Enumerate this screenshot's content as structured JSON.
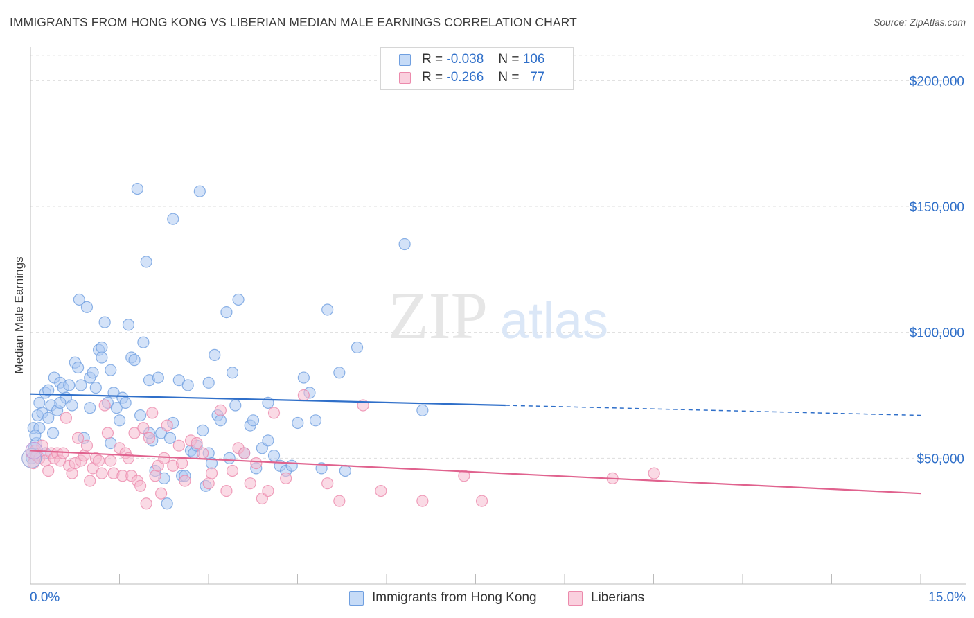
{
  "title": "IMMIGRANTS FROM HONG KONG VS LIBERIAN MEDIAN MALE EARNINGS CORRELATION CHART",
  "source": "Source: ZipAtlas.com",
  "watermark": {
    "zip": "ZIP",
    "atlas": "atlas"
  },
  "stats_legend": {
    "rows": [
      {
        "r_label": "R =",
        "r_value": "-0.038",
        "n_label": "N =",
        "n_value": "106",
        "color": "#aecbf3"
      },
      {
        "r_label": "R =",
        "r_value": "-0.266",
        "n_label": "N =",
        "n_value": "77",
        "color": "#f6bcd0"
      }
    ]
  },
  "chart_data": {
    "type": "scatter",
    "title": "IMMIGRANTS FROM HONG KONG VS LIBERIAN MEDIAN MALE EARNINGS CORRELATION CHART",
    "xlabel": "",
    "ylabel": "Median Male Earnings",
    "xlim": [
      0,
      15
    ],
    "ylim": [
      0,
      210000
    ],
    "x_tick_labels": [
      "0.0%",
      "15.0%"
    ],
    "y_ticks": [
      50000,
      100000,
      150000,
      200000
    ],
    "y_tick_labels": [
      "$50,000",
      "$100,000",
      "$150,000",
      "$200,000"
    ],
    "grid": true,
    "legend": "bottom-center",
    "series": [
      {
        "name": "Immigrants from Hong Kong",
        "color": "#aecbf3",
        "stroke": "#6f9fe0",
        "line_color": "#2f6fc9",
        "trend": {
          "x0": 0,
          "y0": 75500,
          "x1": 8,
          "y1": 71000,
          "dash_to_x": 15,
          "dash_to_y": 67000
        },
        "points": [
          [
            0.02,
            50000
          ],
          [
            0.05,
            62000
          ],
          [
            0.06,
            54000
          ],
          [
            0.1,
            56000
          ],
          [
            0.12,
            67000
          ],
          [
            0.15,
            72000
          ],
          [
            0.2,
            68000
          ],
          [
            0.25,
            76000
          ],
          [
            0.3,
            77000
          ],
          [
            0.35,
            71000
          ],
          [
            0.38,
            60000
          ],
          [
            0.4,
            82000
          ],
          [
            0.45,
            69000
          ],
          [
            0.5,
            80000
          ],
          [
            0.55,
            78000
          ],
          [
            0.6,
            74000
          ],
          [
            0.65,
            79000
          ],
          [
            0.7,
            71000
          ],
          [
            0.75,
            88000
          ],
          [
            0.8,
            86000
          ],
          [
            0.82,
            113000
          ],
          [
            0.85,
            79000
          ],
          [
            0.9,
            58000
          ],
          [
            0.95,
            110000
          ],
          [
            1.0,
            82000
          ],
          [
            1.05,
            84000
          ],
          [
            1.1,
            78000
          ],
          [
            1.15,
            93000
          ],
          [
            1.2,
            90000
          ],
          [
            1.25,
            104000
          ],
          [
            1.3,
            72000
          ],
          [
            1.35,
            85000
          ],
          [
            1.4,
            76000
          ],
          [
            1.45,
            70000
          ],
          [
            1.5,
            65000
          ],
          [
            1.55,
            74000
          ],
          [
            1.6,
            72000
          ],
          [
            1.65,
            103000
          ],
          [
            1.7,
            90000
          ],
          [
            1.75,
            89000
          ],
          [
            1.8,
            157000
          ],
          [
            1.85,
            67000
          ],
          [
            1.9,
            96000
          ],
          [
            1.95,
            128000
          ],
          [
            2.0,
            81000
          ],
          [
            2.05,
            57000
          ],
          [
            2.1,
            45000
          ],
          [
            2.15,
            82000
          ],
          [
            2.2,
            60000
          ],
          [
            2.25,
            42000
          ],
          [
            2.3,
            32000
          ],
          [
            2.35,
            58000
          ],
          [
            2.4,
            145000
          ],
          [
            2.5,
            81000
          ],
          [
            2.55,
            43000
          ],
          [
            2.6,
            43000
          ],
          [
            2.65,
            79000
          ],
          [
            2.7,
            53000
          ],
          [
            2.75,
            52000
          ],
          [
            2.8,
            55000
          ],
          [
            2.85,
            156000
          ],
          [
            2.9,
            61000
          ],
          [
            2.95,
            39000
          ],
          [
            3.0,
            52000
          ],
          [
            3.05,
            48000
          ],
          [
            3.1,
            91000
          ],
          [
            3.15,
            67000
          ],
          [
            3.2,
            65000
          ],
          [
            3.3,
            108000
          ],
          [
            3.35,
            50000
          ],
          [
            3.4,
            84000
          ],
          [
            3.45,
            71000
          ],
          [
            3.5,
            113000
          ],
          [
            3.6,
            52000
          ],
          [
            3.7,
            63000
          ],
          [
            3.75,
            65000
          ],
          [
            3.8,
            46000
          ],
          [
            3.9,
            54000
          ],
          [
            4.0,
            57000
          ],
          [
            4.1,
            51000
          ],
          [
            4.2,
            47000
          ],
          [
            4.3,
            45000
          ],
          [
            4.4,
            47000
          ],
          [
            4.5,
            64000
          ],
          [
            4.6,
            82000
          ],
          [
            4.7,
            76000
          ],
          [
            4.8,
            65000
          ],
          [
            4.9,
            46000
          ],
          [
            5.0,
            109000
          ],
          [
            5.2,
            84000
          ],
          [
            5.3,
            45000
          ],
          [
            5.5,
            94000
          ],
          [
            6.3,
            135000
          ],
          [
            6.6,
            69000
          ],
          [
            1.2,
            94000
          ],
          [
            0.3,
            66000
          ],
          [
            0.5,
            72000
          ],
          [
            1.0,
            70000
          ],
          [
            2.0,
            60000
          ],
          [
            3.0,
            80000
          ],
          [
            0.15,
            62000
          ],
          [
            0.08,
            59000
          ],
          [
            0.25,
            52000
          ],
          [
            1.35,
            56000
          ],
          [
            2.4,
            64000
          ],
          [
            4.0,
            72000
          ]
        ]
      },
      {
        "name": "Liberians",
        "color": "#f6bcd0",
        "stroke": "#ec8aac",
        "line_color": "#e0628e",
        "trend": {
          "x0": 0,
          "y0": 53000,
          "x1": 15,
          "y1": 36000
        },
        "points": [
          [
            0.02,
            52000
          ],
          [
            0.05,
            48000
          ],
          [
            0.08,
            53000
          ],
          [
            0.1,
            51000
          ],
          [
            0.15,
            50000
          ],
          [
            0.2,
            55000
          ],
          [
            0.25,
            49000
          ],
          [
            0.3,
            45000
          ],
          [
            0.35,
            52000
          ],
          [
            0.4,
            50000
          ],
          [
            0.45,
            52000
          ],
          [
            0.5,
            49000
          ],
          [
            0.55,
            52000
          ],
          [
            0.6,
            66000
          ],
          [
            0.65,
            47000
          ],
          [
            0.7,
            44000
          ],
          [
            0.75,
            48000
          ],
          [
            0.8,
            58000
          ],
          [
            0.85,
            49000
          ],
          [
            0.9,
            51000
          ],
          [
            0.95,
            55000
          ],
          [
            1.0,
            41000
          ],
          [
            1.05,
            46000
          ],
          [
            1.1,
            50000
          ],
          [
            1.15,
            49000
          ],
          [
            1.2,
            44000
          ],
          [
            1.25,
            71000
          ],
          [
            1.3,
            60000
          ],
          [
            1.35,
            49000
          ],
          [
            1.4,
            44000
          ],
          [
            1.5,
            54000
          ],
          [
            1.55,
            43000
          ],
          [
            1.6,
            52000
          ],
          [
            1.65,
            50000
          ],
          [
            1.7,
            43000
          ],
          [
            1.75,
            60000
          ],
          [
            1.8,
            41000
          ],
          [
            1.85,
            39000
          ],
          [
            1.9,
            62000
          ],
          [
            1.95,
            32000
          ],
          [
            2.0,
            58000
          ],
          [
            2.05,
            68000
          ],
          [
            2.1,
            43000
          ],
          [
            2.15,
            47000
          ],
          [
            2.2,
            36000
          ],
          [
            2.25,
            50000
          ],
          [
            2.3,
            63000
          ],
          [
            2.4,
            47000
          ],
          [
            2.5,
            55000
          ],
          [
            2.55,
            48000
          ],
          [
            2.6,
            41000
          ],
          [
            2.7,
            57000
          ],
          [
            2.8,
            56000
          ],
          [
            2.9,
            52000
          ],
          [
            3.0,
            40000
          ],
          [
            3.05,
            44000
          ],
          [
            3.2,
            69000
          ],
          [
            3.3,
            37000
          ],
          [
            3.4,
            45000
          ],
          [
            3.5,
            54000
          ],
          [
            3.6,
            52000
          ],
          [
            3.7,
            40000
          ],
          [
            3.8,
            48000
          ],
          [
            3.9,
            34000
          ],
          [
            4.0,
            37000
          ],
          [
            4.1,
            68000
          ],
          [
            4.3,
            42000
          ],
          [
            4.6,
            75000
          ],
          [
            5.0,
            40000
          ],
          [
            5.2,
            33000
          ],
          [
            5.6,
            71000
          ],
          [
            5.9,
            37000
          ],
          [
            6.6,
            33000
          ],
          [
            7.3,
            43000
          ],
          [
            7.6,
            33000
          ],
          [
            9.8,
            42000
          ],
          [
            10.5,
            44000
          ]
        ]
      }
    ]
  },
  "bottom_legend": {
    "items": [
      {
        "label": "Immigrants from Hong Kong",
        "color": "#aecbf3",
        "stroke": "#6f9fe0"
      },
      {
        "label": "Liberians",
        "color": "#f6bcd0",
        "stroke": "#ec8aac"
      }
    ]
  }
}
